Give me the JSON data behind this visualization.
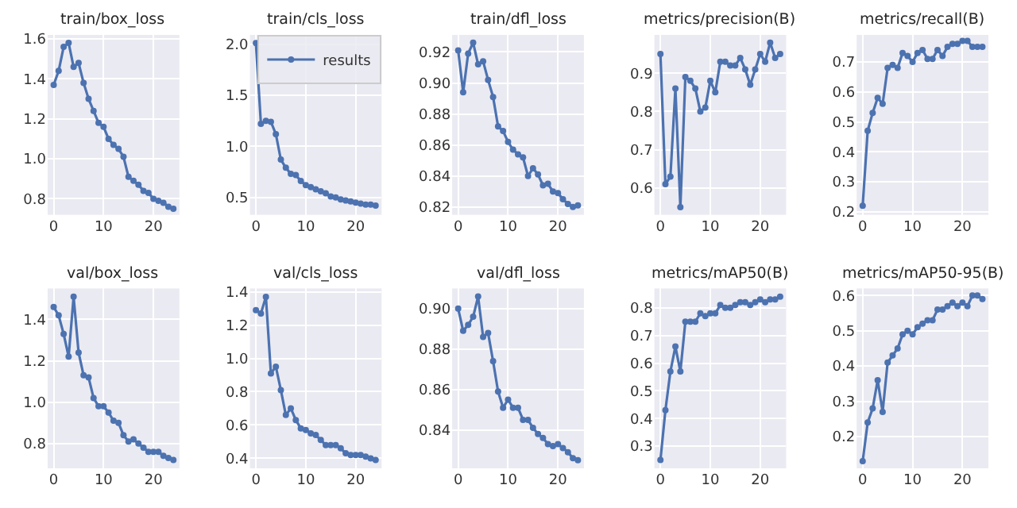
{
  "chart_data": [
    {
      "type": "line",
      "title": "train/box_loss",
      "x": [
        0,
        1,
        2,
        3,
        4,
        5,
        6,
        7,
        8,
        9,
        10,
        11,
        12,
        13,
        14,
        15,
        16,
        17,
        18,
        19,
        20,
        21,
        22,
        23,
        24
      ],
      "xlim": [
        -1.2,
        25.2
      ],
      "xticks": [
        0,
        10,
        20
      ],
      "ylim": [
        0.72,
        1.62
      ],
      "yticks": [
        0.8,
        {
          "value": 1,
          "label": "1.0"
        },
        1.2,
        1.4,
        1.6
      ],
      "grid": true,
      "marker": "circle",
      "line_style": "solid",
      "series": [
        {
          "color": "#4c72b0",
          "values": [
            1.37,
            1.44,
            1.56,
            1.58,
            1.46,
            1.48,
            1.38,
            1.3,
            1.24,
            1.18,
            1.16,
            1.1,
            1.07,
            1.05,
            1.01,
            0.91,
            0.89,
            0.87,
            0.84,
            0.83,
            0.8,
            0.79,
            0.78,
            0.76,
            0.75
          ]
        }
      ]
    },
    {
      "type": "line",
      "title": "train/cls_loss",
      "x": [
        0,
        1,
        2,
        3,
        4,
        5,
        6,
        7,
        8,
        9,
        10,
        11,
        12,
        13,
        14,
        15,
        16,
        17,
        18,
        19,
        20,
        21,
        22,
        23,
        24
      ],
      "xlim": [
        -1.2,
        25.2
      ],
      "xticks": [
        0,
        10,
        20
      ],
      "ylim": [
        0.33,
        2.09
      ],
      "yticks": [
        0.5,
        {
          "value": 1,
          "label": "1.0"
        },
        1.5,
        {
          "value": 2,
          "label": "2.0"
        }
      ],
      "grid": true,
      "marker": "circle",
      "line_style": "solid",
      "legend": "top right",
      "series": [
        {
          "name": "results",
          "color": "#4c72b0",
          "values": [
            2.01,
            1.22,
            1.25,
            1.24,
            1.12,
            0.87,
            0.79,
            0.73,
            0.72,
            0.66,
            0.62,
            0.6,
            0.58,
            0.56,
            0.54,
            0.51,
            0.5,
            0.48,
            0.47,
            0.46,
            0.45,
            0.44,
            0.43,
            0.43,
            0.42
          ]
        }
      ]
    },
    {
      "type": "line",
      "title": "train/dfl_loss",
      "x": [
        0,
        1,
        2,
        3,
        4,
        5,
        6,
        7,
        8,
        9,
        10,
        11,
        12,
        13,
        14,
        15,
        16,
        17,
        18,
        19,
        20,
        21,
        22,
        23,
        24
      ],
      "xlim": [
        -1.2,
        25.2
      ],
      "xticks": [
        0,
        10,
        20
      ],
      "ylim": [
        0.815,
        0.931
      ],
      "yticks": [
        0.82,
        0.84,
        0.86,
        0.88,
        {
          "value": 0.9,
          "label": "0.90"
        },
        0.92
      ],
      "grid": true,
      "marker": "circle",
      "line_style": "solid",
      "series": [
        {
          "color": "#4c72b0",
          "values": [
            0.921,
            0.894,
            0.919,
            0.926,
            0.912,
            0.914,
            0.902,
            0.891,
            0.872,
            0.869,
            0.862,
            0.857,
            0.854,
            0.852,
            0.84,
            0.845,
            0.841,
            0.834,
            0.835,
            0.83,
            0.829,
            0.825,
            0.822,
            0.82,
            0.821
          ]
        }
      ]
    },
    {
      "type": "line",
      "title": "metrics/precision(B)",
      "x": [
        0,
        1,
        2,
        3,
        4,
        5,
        6,
        7,
        8,
        9,
        10,
        11,
        12,
        13,
        14,
        15,
        16,
        17,
        18,
        19,
        20,
        21,
        22,
        23,
        24
      ],
      "xlim": [
        -1.2,
        25.2
      ],
      "xticks": [
        0,
        10,
        20
      ],
      "ylim": [
        0.53,
        1.0
      ],
      "yticks": [
        0.6,
        0.7,
        0.8,
        0.9
      ],
      "grid": true,
      "marker": "circle",
      "line_style": "solid",
      "series": [
        {
          "color": "#4c72b0",
          "values": [
            0.95,
            0.61,
            0.63,
            0.86,
            0.55,
            0.89,
            0.88,
            0.86,
            0.8,
            0.81,
            0.88,
            0.85,
            0.93,
            0.93,
            0.92,
            0.92,
            0.94,
            0.91,
            0.87,
            0.91,
            0.95,
            0.93,
            0.98,
            0.94,
            0.95
          ]
        }
      ]
    },
    {
      "type": "line",
      "title": "metrics/recall(B)",
      "x": [
        0,
        1,
        2,
        3,
        4,
        5,
        6,
        7,
        8,
        9,
        10,
        11,
        12,
        13,
        14,
        15,
        16,
        17,
        18,
        19,
        20,
        21,
        22,
        23,
        24
      ],
      "xlim": [
        -1.2,
        25.2
      ],
      "xticks": [
        0,
        10,
        20
      ],
      "ylim": [
        0.19,
        0.79
      ],
      "yticks": [
        0.2,
        0.3,
        0.4,
        0.5,
        0.6,
        0.7
      ],
      "grid": true,
      "marker": "circle",
      "line_style": "solid",
      "series": [
        {
          "color": "#4c72b0",
          "values": [
            0.22,
            0.47,
            0.53,
            0.58,
            0.56,
            0.68,
            0.69,
            0.68,
            0.73,
            0.72,
            0.7,
            0.73,
            0.74,
            0.71,
            0.71,
            0.74,
            0.72,
            0.75,
            0.76,
            0.76,
            0.77,
            0.77,
            0.75,
            0.75,
            0.75
          ]
        }
      ]
    },
    {
      "type": "line",
      "title": "val/box_loss",
      "x": [
        0,
        1,
        2,
        3,
        4,
        5,
        6,
        7,
        8,
        9,
        10,
        11,
        12,
        13,
        14,
        15,
        16,
        17,
        18,
        19,
        20,
        21,
        22,
        23,
        24
      ],
      "xlim": [
        -1.2,
        25.2
      ],
      "xticks": [
        0,
        10,
        20
      ],
      "ylim": [
        0.68,
        1.55
      ],
      "yticks": [
        0.8,
        {
          "value": 1,
          "label": "1.0"
        },
        1.2,
        1.4
      ],
      "grid": true,
      "marker": "circle",
      "line_style": "solid",
      "series": [
        {
          "color": "#4c72b0",
          "values": [
            1.46,
            1.42,
            1.33,
            1.22,
            1.51,
            1.24,
            1.13,
            1.12,
            1.02,
            0.98,
            0.98,
            0.95,
            0.91,
            0.9,
            0.84,
            0.81,
            0.82,
            0.8,
            0.78,
            0.76,
            0.76,
            0.76,
            0.74,
            0.73,
            0.72
          ]
        }
      ]
    },
    {
      "type": "line",
      "title": "val/cls_loss",
      "x": [
        0,
        1,
        2,
        3,
        4,
        5,
        6,
        7,
        8,
        9,
        10,
        11,
        12,
        13,
        14,
        15,
        16,
        17,
        18,
        19,
        20,
        21,
        22,
        23,
        24
      ],
      "xlim": [
        -1.2,
        25.2
      ],
      "xticks": [
        0,
        10,
        20
      ],
      "ylim": [
        0.34,
        1.42
      ],
      "yticks": [
        0.4,
        0.6,
        0.8,
        {
          "value": 1,
          "label": "1.0"
        },
        1.2,
        1.4
      ],
      "grid": true,
      "marker": "circle",
      "line_style": "solid",
      "series": [
        {
          "color": "#4c72b0",
          "values": [
            1.29,
            1.27,
            1.37,
            0.91,
            0.95,
            0.81,
            0.66,
            0.7,
            0.63,
            0.58,
            0.57,
            0.55,
            0.54,
            0.51,
            0.48,
            0.48,
            0.48,
            0.46,
            0.43,
            0.42,
            0.42,
            0.42,
            0.41,
            0.4,
            0.39
          ]
        }
      ]
    },
    {
      "type": "line",
      "title": "val/dfl_loss",
      "x": [
        0,
        1,
        2,
        3,
        4,
        5,
        6,
        7,
        8,
        9,
        10,
        11,
        12,
        13,
        14,
        15,
        16,
        17,
        18,
        19,
        20,
        21,
        22,
        23,
        24
      ],
      "xlim": [
        -1.2,
        25.2
      ],
      "xticks": [
        0,
        10,
        20
      ],
      "ylim": [
        0.821,
        0.91
      ],
      "yticks": [
        0.84,
        0.86,
        0.88,
        {
          "value": 0.9,
          "label": "0.90"
        }
      ],
      "grid": true,
      "marker": "circle",
      "line_style": "solid",
      "series": [
        {
          "color": "#4c72b0",
          "values": [
            0.9,
            0.889,
            0.892,
            0.896,
            0.906,
            0.886,
            0.888,
            0.874,
            0.859,
            0.851,
            0.855,
            0.851,
            0.851,
            0.845,
            0.845,
            0.841,
            0.838,
            0.836,
            0.833,
            0.832,
            0.833,
            0.831,
            0.829,
            0.826,
            0.825
          ]
        }
      ]
    },
    {
      "type": "line",
      "title": "metrics/mAP50(B)",
      "x": [
        0,
        1,
        2,
        3,
        4,
        5,
        6,
        7,
        8,
        9,
        10,
        11,
        12,
        13,
        14,
        15,
        16,
        17,
        18,
        19,
        20,
        21,
        22,
        23,
        24
      ],
      "xlim": [
        -1.2,
        25.2
      ],
      "xticks": [
        0,
        10,
        20
      ],
      "ylim": [
        0.22,
        0.87
      ],
      "yticks": [
        0.3,
        0.4,
        0.5,
        0.6,
        0.7,
        0.8
      ],
      "grid": true,
      "marker": "circle",
      "line_style": "solid",
      "series": [
        {
          "color": "#4c72b0",
          "values": [
            0.25,
            0.43,
            0.57,
            0.66,
            0.57,
            0.75,
            0.75,
            0.75,
            0.78,
            0.77,
            0.78,
            0.78,
            0.81,
            0.8,
            0.8,
            0.81,
            0.82,
            0.82,
            0.81,
            0.82,
            0.83,
            0.82,
            0.83,
            0.83,
            0.84
          ]
        }
      ]
    },
    {
      "type": "line",
      "title": "metrics/mAP50-95(B)",
      "x": [
        0,
        1,
        2,
        3,
        4,
        5,
        6,
        7,
        8,
        9,
        10,
        11,
        12,
        13,
        14,
        15,
        16,
        17,
        18,
        19,
        20,
        21,
        22,
        23,
        24
      ],
      "xlim": [
        -1.2,
        25.2
      ],
      "xticks": [
        0,
        10,
        20
      ],
      "ylim": [
        0.11,
        0.62
      ],
      "yticks": [
        0.2,
        0.3,
        0.4,
        0.5,
        0.6
      ],
      "grid": true,
      "marker": "circle",
      "line_style": "solid",
      "series": [
        {
          "color": "#4c72b0",
          "values": [
            0.13,
            0.24,
            0.28,
            0.36,
            0.27,
            0.41,
            0.43,
            0.45,
            0.49,
            0.5,
            0.49,
            0.51,
            0.52,
            0.53,
            0.53,
            0.56,
            0.56,
            0.57,
            0.58,
            0.57,
            0.58,
            0.57,
            0.6,
            0.6,
            0.59
          ]
        }
      ]
    }
  ]
}
